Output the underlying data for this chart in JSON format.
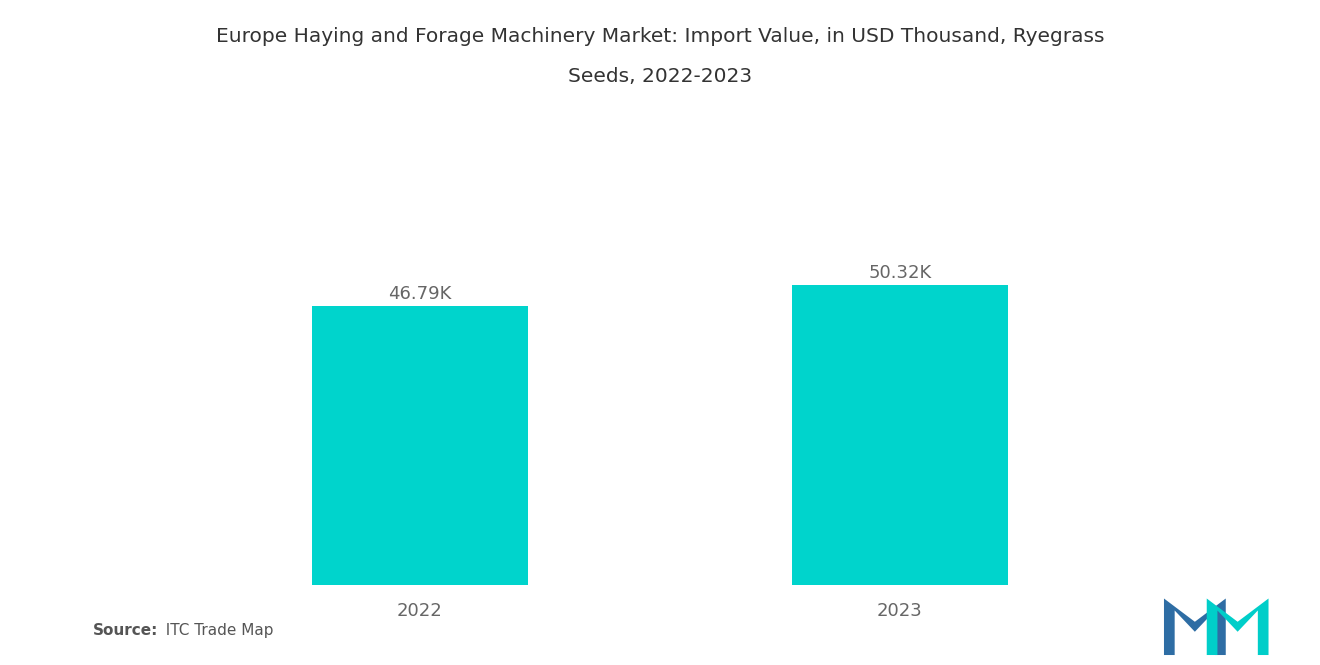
{
  "title_line1": "Europe Haying and Forage Machinery Market: Import Value, in USD Thousand, Ryegrass",
  "title_line2": "Seeds, 2022-2023",
  "categories": [
    "2022",
    "2023"
  ],
  "values": [
    46.79,
    50.32
  ],
  "labels": [
    "46.79K",
    "50.32K"
  ],
  "bar_color": "#00D4CC",
  "background_color": "#ffffff",
  "title_fontsize": 14.5,
  "label_fontsize": 13,
  "tick_fontsize": 13,
  "source_bold": "Source:",
  "source_normal": "  ITC Trade Map",
  "ylim": [
    0,
    58
  ],
  "bar_width": 0.45,
  "logo_blue": "#2E6DA4",
  "logo_teal": "#00CEC9"
}
